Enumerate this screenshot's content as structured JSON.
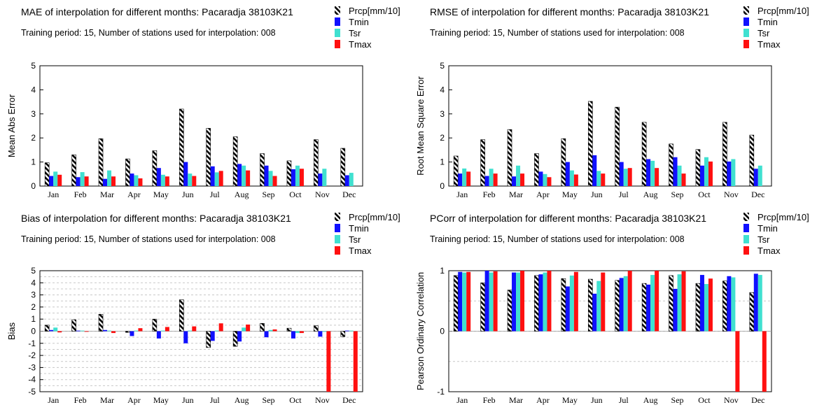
{
  "colors": {
    "Prcp": "hatched-black",
    "Tmin": "#1010ff",
    "Tsr": "#40e0d0",
    "Tmax": "#ff1010"
  },
  "chart_data": [
    {
      "type": "bar",
      "title": "MAE of interpolation for different months: Pacaradja  38103K21",
      "subtitle": "Training period: 15, Number of stations used for interpolation: 008",
      "ylabel": "Mean Abs Error",
      "ylim": [
        0,
        5
      ],
      "yticks": [
        "0",
        "1",
        "2",
        "3",
        "4",
        "5"
      ],
      "grid": false,
      "legend": "top-right",
      "categories": [
        "Jan",
        "Feb",
        "Mar",
        "Apr",
        "May",
        "Jun",
        "Jul",
        "Aug",
        "Sep",
        "Oct",
        "Nov",
        "Dec"
      ],
      "series": [
        {
          "name": "Prcp[mm/10]",
          "values": [
            0.97,
            1.3,
            1.97,
            1.13,
            1.47,
            3.2,
            2.4,
            2.05,
            1.35,
            1.05,
            1.93,
            1.57
          ]
        },
        {
          "name": "Tmin",
          "values": [
            0.42,
            0.37,
            0.3,
            0.52,
            0.75,
            1.0,
            0.82,
            0.92,
            0.85,
            0.7,
            0.52,
            0.45
          ]
        },
        {
          "name": "Tsr",
          "values": [
            0.6,
            0.58,
            0.65,
            0.45,
            0.47,
            0.52,
            0.57,
            0.85,
            0.63,
            0.85,
            0.72,
            0.55
          ]
        },
        {
          "name": "Tmax",
          "values": [
            0.47,
            0.4,
            0.4,
            0.32,
            0.4,
            0.42,
            0.63,
            0.65,
            0.42,
            0.72,
            null,
            null
          ]
        }
      ]
    },
    {
      "type": "bar",
      "title": "RMSE of interpolation for different months: Pacaradja  38103K21",
      "subtitle": "Training period: 15, Number of stations used for interpolation: 008",
      "ylabel": "Root Mean Square Error",
      "ylim": [
        0,
        5
      ],
      "yticks": [
        "0",
        "1",
        "2",
        "3",
        "4",
        "5"
      ],
      "grid": false,
      "legend": "top-right",
      "categories": [
        "Jan",
        "Feb",
        "Mar",
        "Apr",
        "May",
        "Jun",
        "Jul",
        "Aug",
        "Sep",
        "Oct",
        "Nov",
        "Dec"
      ],
      "series": [
        {
          "name": "Prcp[mm/10]",
          "values": [
            1.25,
            1.93,
            2.35,
            1.35,
            1.97,
            3.52,
            3.28,
            2.65,
            1.75,
            1.52,
            2.65,
            2.12
          ]
        },
        {
          "name": "Tmin",
          "values": [
            0.52,
            0.42,
            0.4,
            0.6,
            1.0,
            1.28,
            1.0,
            1.12,
            1.2,
            0.85,
            1.02,
            0.72
          ]
        },
        {
          "name": "Tsr",
          "values": [
            0.73,
            0.72,
            0.85,
            0.5,
            0.65,
            0.63,
            0.72,
            1.05,
            0.85,
            1.2,
            1.12,
            0.85
          ]
        },
        {
          "name": "Tmax",
          "values": [
            0.6,
            0.52,
            0.52,
            0.37,
            0.48,
            0.52,
            0.75,
            0.75,
            0.52,
            1.02,
            null,
            null
          ]
        }
      ]
    },
    {
      "type": "bar",
      "title": "Bias of interpolation for different months: Pacaradja  38103K21",
      "subtitle": "Training period: 15, Number of stations used for interpolation: 008",
      "ylabel": "Bias",
      "ylim": [
        -5,
        5
      ],
      "yticks": [
        "-5",
        "-4",
        "-3",
        "-2",
        "-1",
        "0",
        "1",
        "2",
        "3",
        "4",
        "5"
      ],
      "grid": true,
      "legend": "top-right",
      "categories": [
        "Jan",
        "Feb",
        "Mar",
        "Apr",
        "May",
        "Jun",
        "Jul",
        "Aug",
        "Sep",
        "Oct",
        "Nov",
        "Dec"
      ],
      "series": [
        {
          "name": "Prcp[mm/10]",
          "values": [
            0.5,
            0.95,
            1.4,
            -0.1,
            1.0,
            2.6,
            -1.35,
            -1.25,
            0.65,
            0.25,
            0.45,
            -0.45
          ]
        },
        {
          "name": "Tmin",
          "values": [
            0.1,
            0.05,
            0.1,
            -0.4,
            -0.6,
            -1.0,
            -0.8,
            -0.85,
            -0.5,
            -0.6,
            -0.45,
            0.05
          ]
        },
        {
          "name": "Tsr",
          "values": [
            0.3,
            0.05,
            0.05,
            0.05,
            0.05,
            0.05,
            0.05,
            0.3,
            0.1,
            -0.15,
            -0.05,
            0.05
          ]
        },
        {
          "name": "Tmax",
          "values": [
            -0.1,
            -0.05,
            -0.15,
            0.25,
            0.35,
            0.4,
            0.65,
            0.55,
            0.15,
            -0.15,
            -5,
            -5
          ]
        }
      ]
    },
    {
      "type": "bar",
      "title": "PCorr of interpolation for different months: Pacaradja  38103K21",
      "subtitle": "Training period: 15, Number of stations used for interpolation: 008",
      "ylabel": "Pearson Ordinary Correlation",
      "ylim": [
        -1,
        1
      ],
      "yticks": [
        "-1",
        "0",
        "1"
      ],
      "grid": true,
      "legend": "top-right",
      "categories": [
        "Jan",
        "Feb",
        "Mar",
        "Apr",
        "May",
        "Jun",
        "Jul",
        "Aug",
        "Sep",
        "Oct",
        "Nov",
        "Dec"
      ],
      "series": [
        {
          "name": "Prcp[mm/10]",
          "values": [
            0.92,
            0.8,
            0.68,
            0.92,
            0.87,
            0.86,
            0.84,
            0.79,
            0.92,
            0.79,
            0.83,
            0.64
          ]
        },
        {
          "name": "Tmin",
          "values": [
            0.98,
            1.0,
            0.97,
            0.94,
            0.74,
            0.62,
            0.88,
            0.77,
            0.7,
            0.93,
            0.91,
            0.95
          ]
        },
        {
          "name": "Tsr",
          "values": [
            0.97,
            0.97,
            0.97,
            0.97,
            0.92,
            0.83,
            0.91,
            0.93,
            0.94,
            0.78,
            0.89,
            0.93
          ]
        },
        {
          "name": "Tmax",
          "values": [
            0.98,
            0.99,
            1.0,
            1.0,
            0.98,
            0.97,
            1.0,
            1.0,
            0.99,
            0.87,
            -1.0,
            -1.0
          ]
        }
      ]
    }
  ]
}
